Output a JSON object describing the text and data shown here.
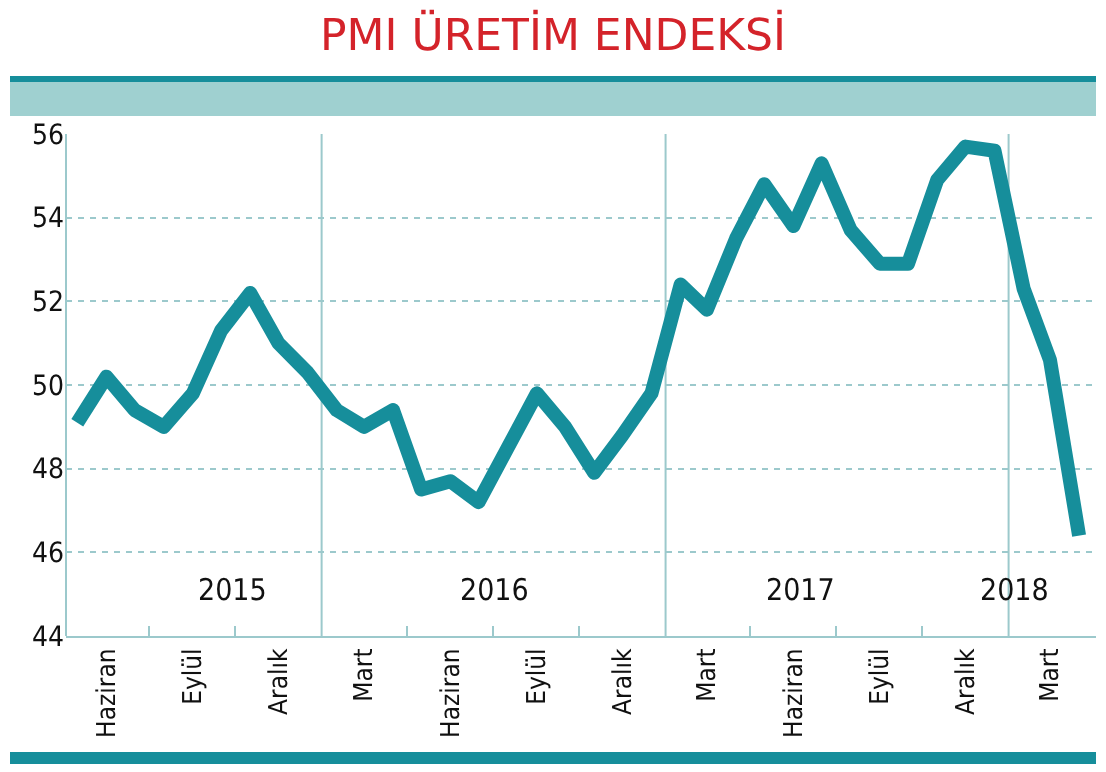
{
  "chart_data": {
    "type": "line",
    "title": "PMI ÜRETİM ENDEKSİ",
    "x": [
      "2015-05",
      "2015-06",
      "2015-07",
      "2015-08",
      "2015-09",
      "2015-10",
      "2015-11",
      "2015-12",
      "2016-01",
      "2016-02",
      "2016-03",
      "2016-04",
      "2016-05",
      "2016-06",
      "2016-07",
      "2016-08",
      "2016-09",
      "2016-10",
      "2016-11",
      "2016-12",
      "2017-01",
      "2017-02",
      "2017-03",
      "2017-04",
      "2017-05",
      "2017-06",
      "2017-07",
      "2017-08",
      "2017-09",
      "2017-10",
      "2017-11",
      "2017-12",
      "2018-01",
      "2018-02",
      "2018-03",
      "2018-04"
    ],
    "series": [
      {
        "color": "#168e9b",
        "values": [
          49.1,
          50.2,
          49.4,
          49.0,
          49.8,
          51.3,
          52.2,
          51.0,
          50.3,
          49.4,
          49.0,
          49.4,
          47.5,
          47.7,
          47.2,
          48.5,
          49.8,
          49.0,
          47.9,
          48.8,
          49.8,
          52.4,
          51.8,
          53.5,
          54.8,
          53.8,
          55.3,
          53.7,
          52.9,
          52.9,
          54.9,
          55.7,
          55.6,
          52.3,
          50.6,
          46.4
        ]
      }
    ],
    "xlim": [
      "2015-04-19",
      "2018-04-19"
    ],
    "xticks": [
      {
        "value": "2015-06",
        "label": "Haziran"
      },
      {
        "value": "2015-09",
        "label": "Eylül"
      },
      {
        "value": "2015-12",
        "label": "Aralık"
      },
      {
        "value": "2016-03",
        "label": "Mart"
      },
      {
        "value": "2016-06",
        "label": "Haziran"
      },
      {
        "value": "2016-09",
        "label": "Eylül"
      },
      {
        "value": "2016-12",
        "label": "Aralık"
      },
      {
        "value": "2017-03",
        "label": "Mart"
      },
      {
        "value": "2017-06",
        "label": "Haziran"
      },
      {
        "value": "2017-09",
        "label": "Eylül"
      },
      {
        "value": "2017-12",
        "label": "Aralık"
      },
      {
        "value": "2018-03",
        "label": "Mart"
      },
      {
        "value": "2015-07-16",
        "label": null
      },
      {
        "value": "2015-10-16",
        "label": null
      },
      {
        "value": "2016-04-16",
        "label": null
      },
      {
        "value": "2016-07-16",
        "label": null
      },
      {
        "value": "2016-10-16",
        "label": null
      },
      {
        "value": "2017-04-16",
        "label": null
      },
      {
        "value": "2017-07-16",
        "label": null
      },
      {
        "value": "2017-10-16",
        "label": null
      }
    ],
    "ylim": [
      44,
      56
    ],
    "yticks": [
      44,
      46,
      48,
      50,
      52,
      54,
      56
    ],
    "grid": "y",
    "line_style": "solid",
    "marker": "none",
    "ref_lines": [
      {
        "axis": "x",
        "value": "2016-01-16",
        "color": "#9cc9cc"
      },
      {
        "axis": "x",
        "value": "2017-01-16",
        "color": "#9cc9cc"
      },
      {
        "axis": "x",
        "value": "2018-01-16",
        "color": "#9cc9cc"
      }
    ],
    "annotations": [
      "2015",
      "2016",
      "2017",
      "2018"
    ]
  }
}
